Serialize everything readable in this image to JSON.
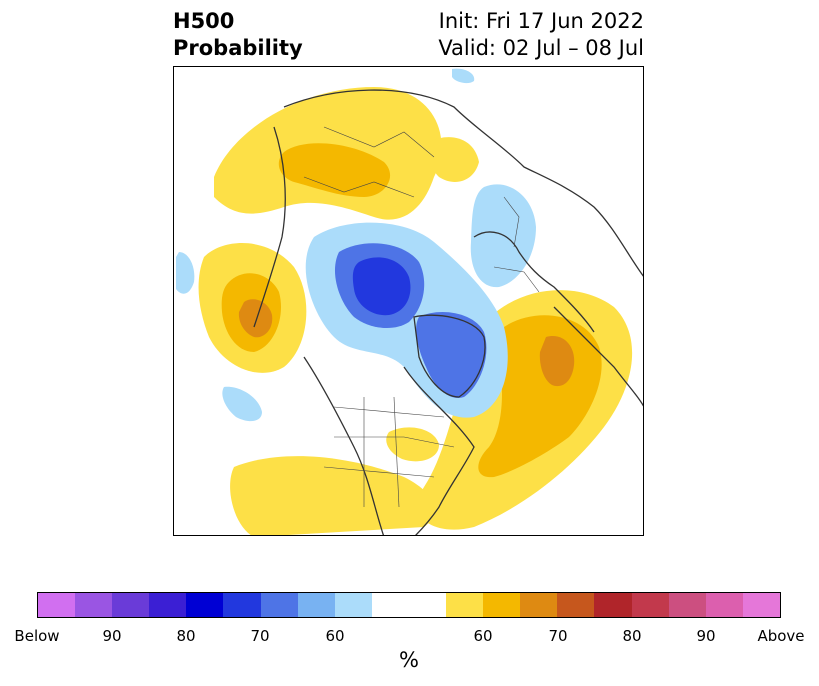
{
  "title": {
    "left_line1": "H500",
    "left_line2": "Probability",
    "right_line1": "Init: Fri 17 Jun 2022",
    "right_line2": "Valid: 02 Jul – 08 Jul"
  },
  "colors": {
    "below": [
      "#d16ff0",
      "#9a55e3",
      "#6a3bd8",
      "#3b1fd4",
      "#0000d4",
      "#2238de",
      "#4e74e6",
      "#78b2f2",
      "#abdcfa"
    ],
    "neutral": "#ffffff",
    "above": [
      "#fde047",
      "#f4b800",
      "#de8a12",
      "#c6571d",
      "#b0252a",
      "#c2394c",
      "#cc4f80",
      "#dc5fae",
      "#e577d9"
    ],
    "land_outline": "#333333"
  },
  "colorbar": {
    "tick_labels": [
      "Below",
      "90",
      "80",
      "70",
      "60",
      "60",
      "70",
      "80",
      "90",
      "Above"
    ],
    "unit_label": "%"
  },
  "map": {
    "projection": "polar-stereographic-north",
    "field": "500 hPa height probability (below / above normal)",
    "anomalies": [
      {
        "region": "north-pacific-aleutians",
        "sign": "below",
        "max_category": "80"
      },
      {
        "region": "north-atlantic-baffin",
        "sign": "below",
        "max_category": "70"
      },
      {
        "region": "eastern-europe",
        "sign": "below",
        "max_category": "60"
      },
      {
        "region": "western-siberia",
        "sign": "above",
        "max_category": "70"
      },
      {
        "region": "north-atlantic-azores",
        "sign": "above",
        "max_category": "70"
      },
      {
        "region": "northwest-pacific",
        "sign": "above",
        "max_category": "70"
      },
      {
        "region": "great-lakes",
        "sign": "above",
        "max_category": "60"
      },
      {
        "region": "southern-us-atlantic",
        "sign": "above",
        "max_category": "60"
      }
    ]
  }
}
